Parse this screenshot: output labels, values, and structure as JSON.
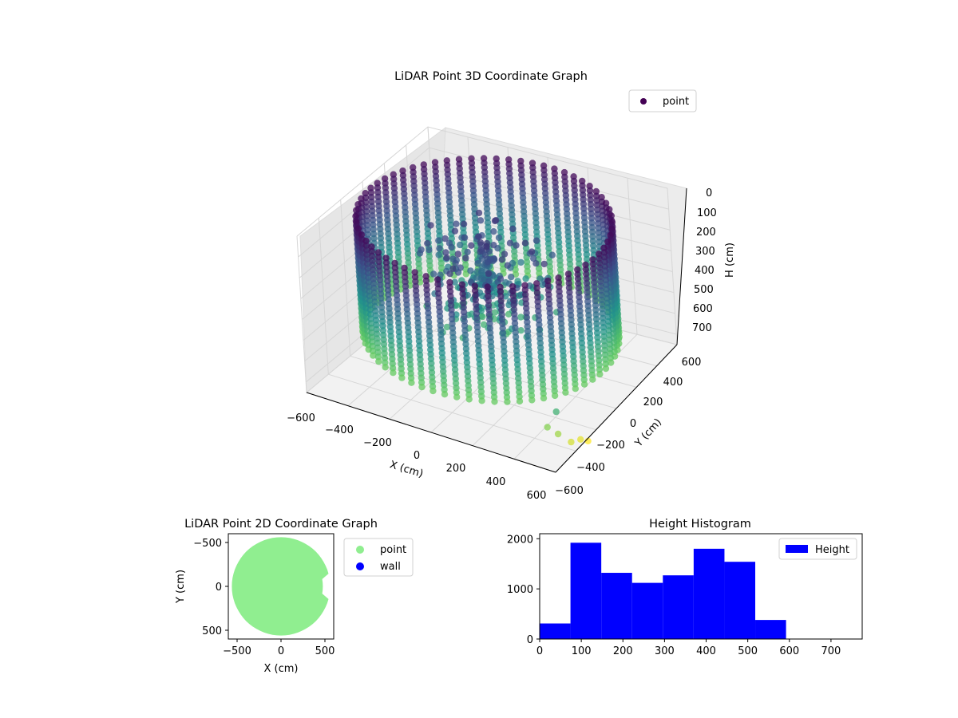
{
  "chart_data": [
    {
      "type": "scatter3d",
      "title": "LiDAR Point 3D Coordinate Graph",
      "xlabel": "X (cm)",
      "ylabel": "Y (cm)",
      "zlabel": "H (cm)",
      "xlim": [
        -600,
        600
      ],
      "ylim": [
        -600,
        600
      ],
      "zlim": [
        0,
        750
      ],
      "z_inverted": true,
      "xticks": [
        "−600",
        "−400",
        "−200",
        "0",
        "200",
        "400",
        "600"
      ],
      "yticks": [
        "−600",
        "−400",
        "−200",
        "0",
        "200",
        "400",
        "600"
      ],
      "zticks": [
        "0",
        "100",
        "200",
        "300",
        "400",
        "500",
        "600",
        "700"
      ],
      "grid": true,
      "legend": {
        "placement": "upper-right",
        "entries": [
          "point"
        ]
      },
      "colormap": "viridis",
      "legend_color": "#440154",
      "description_values": {
        "wall_radius_cm": 560,
        "wall_height_range_cm": [
          20,
          580
        ],
        "stray_points": [
          {
            "x": 590,
            "y": 420,
            "h": 700
          },
          {
            "x": 560,
            "y": 480,
            "h": 640
          },
          {
            "x": 520,
            "y": 500,
            "h": 610
          },
          {
            "x": 600,
            "y": 350,
            "h": 720
          },
          {
            "x": 610,
            "y": 300,
            "h": 750
          },
          {
            "x": 600,
            "y": 560,
            "h": 480
          }
        ]
      }
    },
    {
      "type": "scatter",
      "title": "LiDAR Point 2D Coordinate Graph",
      "xlabel": "X (cm)",
      "ylabel": "Y (cm)",
      "xlim": [
        -600,
        600
      ],
      "ylim": [
        -600,
        600
      ],
      "xticks": [
        "−500",
        "0",
        "500"
      ],
      "yticks": [
        "−500",
        "0",
        "500"
      ],
      "legend": {
        "placement": "outside-right",
        "entries": [
          "point",
          "wall"
        ]
      },
      "series": [
        {
          "name": "point",
          "color": "#90ee90",
          "radius_cm": 560
        },
        {
          "name": "wall",
          "color": "#0000ff",
          "count": 0
        }
      ]
    },
    {
      "type": "bar",
      "title": "Height Histogram",
      "xlabel": "",
      "ylabel": "",
      "xlim": [
        0,
        775
      ],
      "ylim": [
        0,
        2100
      ],
      "xticks": [
        "0",
        "100",
        "200",
        "300",
        "400",
        "500",
        "600",
        "700"
      ],
      "yticks": [
        "0",
        "1000",
        "2000"
      ],
      "legend": {
        "placement": "upper-right",
        "entries": [
          "Height"
        ]
      },
      "color": "#0000ff",
      "bin_edges": [
        0,
        74,
        148,
        222,
        296,
        370,
        444,
        518,
        592,
        666,
        740
      ],
      "values": [
        310,
        1920,
        1320,
        1120,
        1270,
        1800,
        1540,
        380,
        0,
        0
      ],
      "series": [
        {
          "name": "Height"
        }
      ]
    }
  ]
}
